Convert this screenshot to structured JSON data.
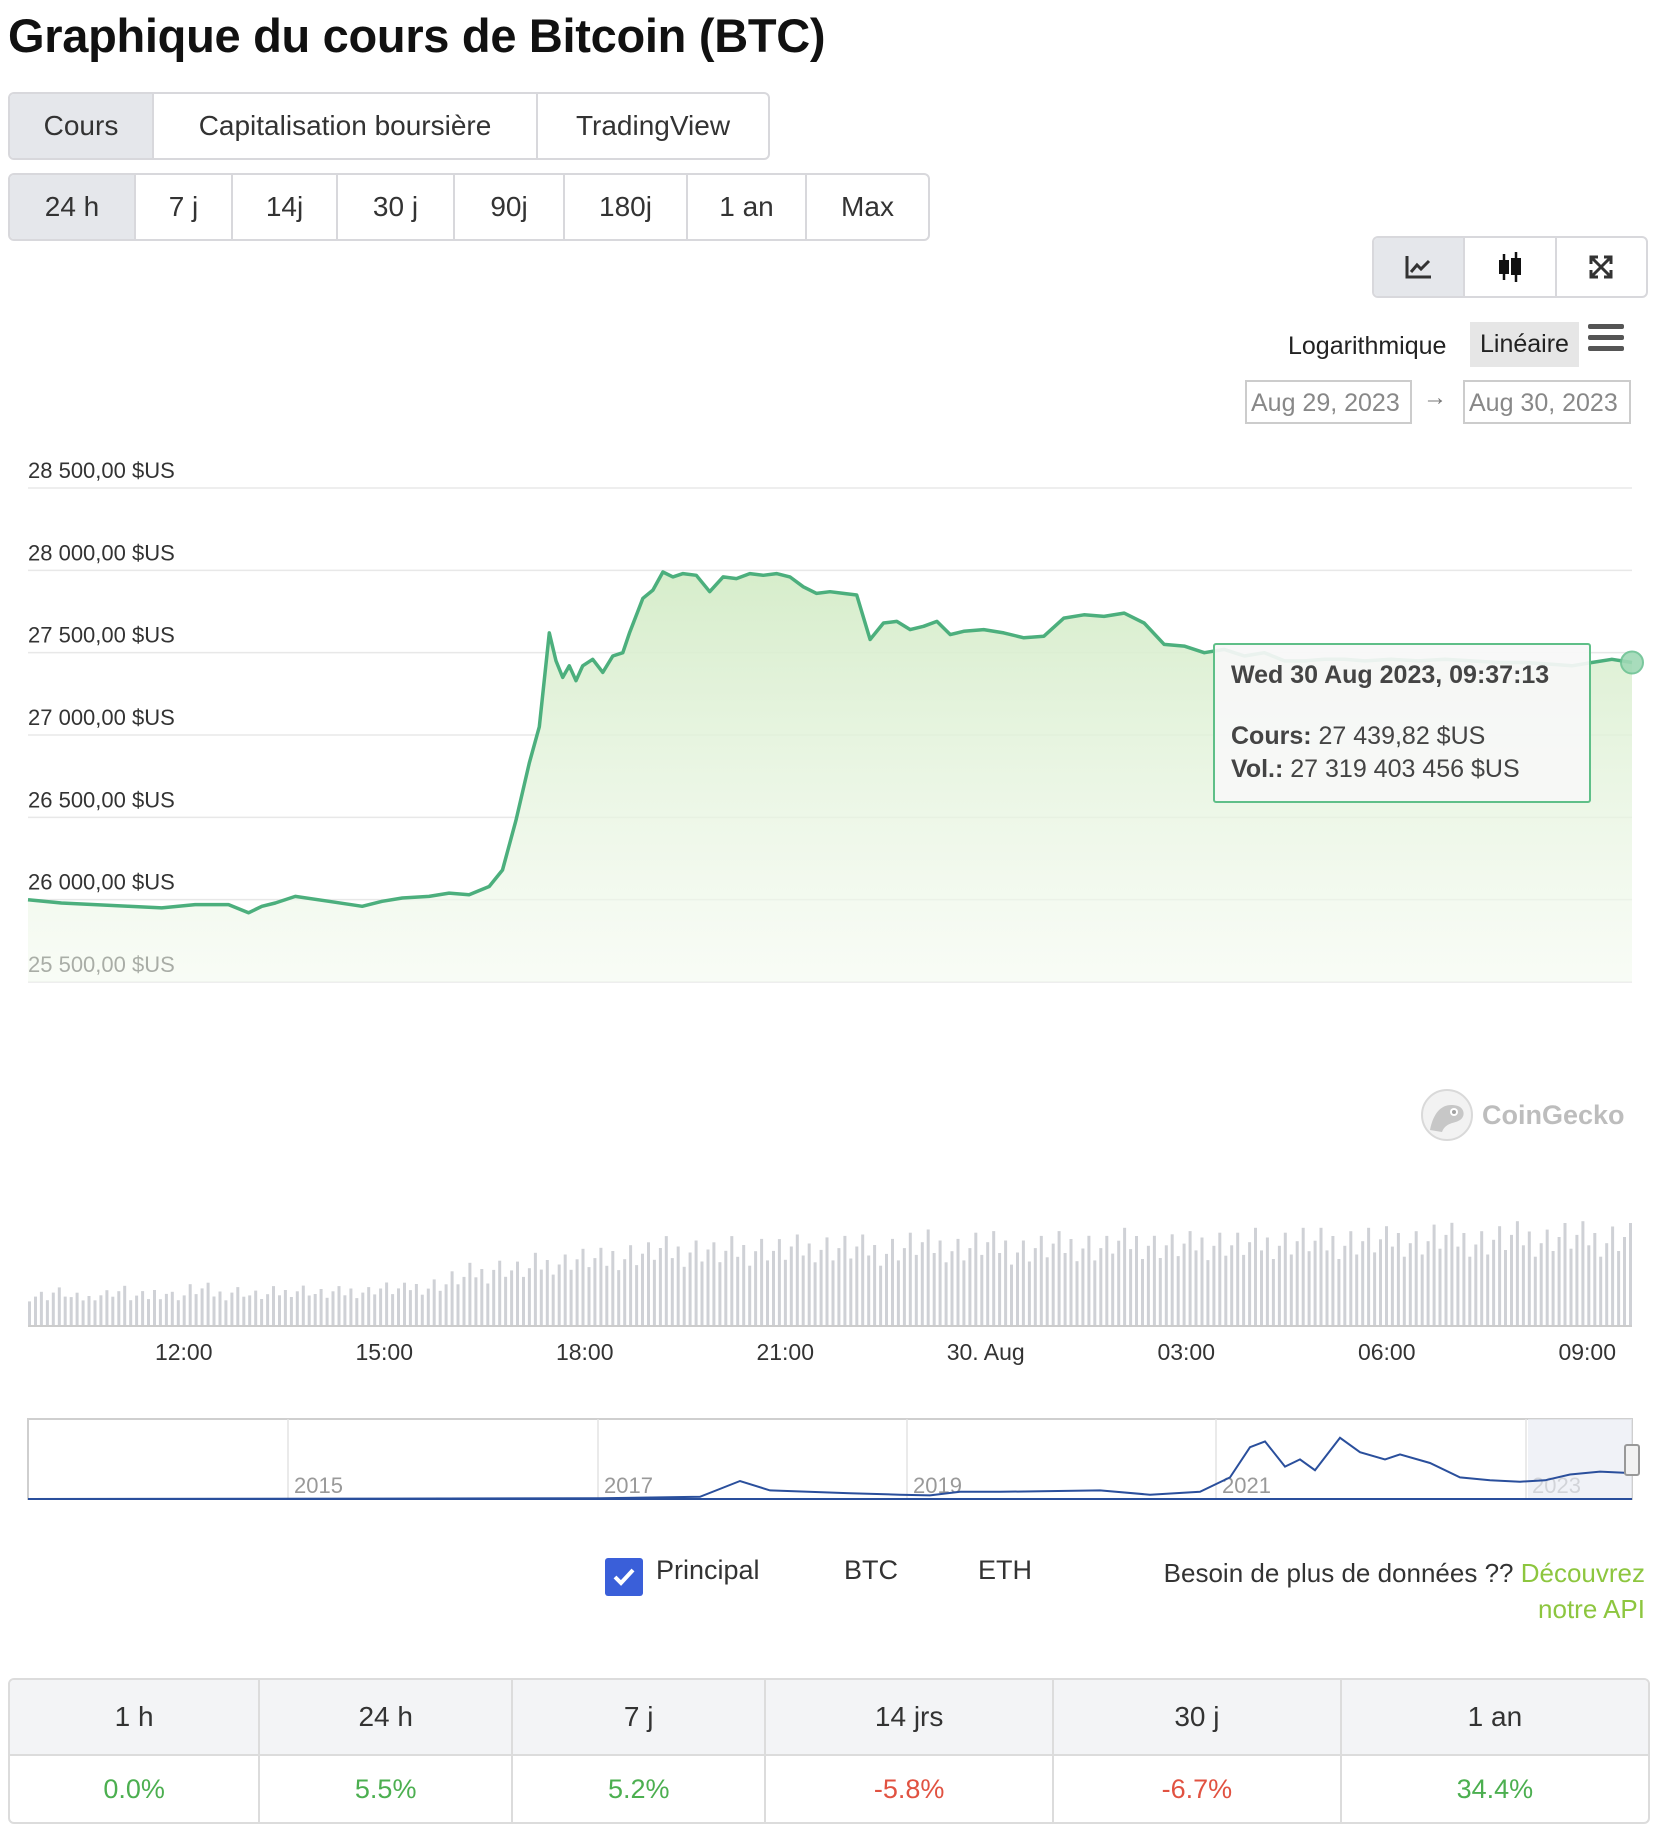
{
  "page": {
    "title": "Graphique du cours de Bitcoin (BTC)"
  },
  "tabs": [
    {
      "label": "Cours",
      "active": true
    },
    {
      "label": "Capitalisation boursière",
      "active": false
    },
    {
      "label": "TradingView",
      "active": false
    }
  ],
  "ranges": [
    {
      "label": "24 h",
      "active": true
    },
    {
      "label": "7 j",
      "active": false
    },
    {
      "label": "14j",
      "active": false
    },
    {
      "label": "30 j",
      "active": false
    },
    {
      "label": "90j",
      "active": false
    },
    {
      "label": "180j",
      "active": false
    },
    {
      "label": "1 an",
      "active": false
    },
    {
      "label": "Max",
      "active": false
    }
  ],
  "chart_tools": [
    {
      "icon": "line-chart-icon",
      "active": true
    },
    {
      "icon": "candlestick-icon",
      "active": false
    },
    {
      "icon": "fullscreen-icon",
      "active": false
    }
  ],
  "scale": {
    "log_label": "Logarithmique",
    "linear_label": "Linéaire",
    "selected": "Linéaire"
  },
  "date_range": {
    "from": "Aug 29, 2023",
    "to": "Aug 30, 2023",
    "arrow": "→"
  },
  "tooltip": {
    "date": "Wed 30 Aug 2023, 09:37:13",
    "price_label": "Cours:",
    "price_value": "27 439,82 $US",
    "volume_label": "Vol.:",
    "volume_value": "27 319 403 456 $US"
  },
  "watermark": "CoinGecko",
  "colors": {
    "line": "#4caf7d",
    "accent_positive": "#4caf50",
    "accent_negative": "#e15241",
    "checkbox": "#3a5fd9",
    "link": "#8dc63f",
    "navigator_line": "#2a4f9c"
  },
  "chart_data": {
    "type": "area",
    "ylim": [
      25500,
      28500
    ],
    "y_ticks": [
      "28 500,00 $US",
      "28 000,00 $US",
      "27 500,00 $US",
      "27 000,00 $US",
      "26 500,00 $US",
      "26 000,00 $US",
      "25 500,00 $US"
    ],
    "y_tick_values": [
      28500,
      28000,
      27500,
      27000,
      26500,
      26000,
      25500
    ],
    "x_ticks": [
      "12:00",
      "15:00",
      "18:00",
      "21:00",
      "30. Aug",
      "03:00",
      "06:00",
      "09:00"
    ],
    "x_tick_hours": [
      2.33,
      5.33,
      8.33,
      11.33,
      14.33,
      17.33,
      20.33,
      23.33
    ],
    "x_hours_range": [
      0,
      24
    ],
    "series": [
      {
        "x": [
          0,
          0.5,
          1,
          1.5,
          2,
          2.5,
          3,
          3.3,
          3.5,
          3.7,
          4,
          4.5,
          5,
          5.3,
          5.6,
          6,
          6.3,
          6.6,
          6.9,
          7.1,
          7.3,
          7.5,
          7.65,
          7.8,
          7.9,
          8.0,
          8.1,
          8.2,
          8.3,
          8.45,
          8.6,
          8.75,
          8.9,
          9.0,
          9.2,
          9.35,
          9.5,
          9.65,
          9.8,
          10,
          10.2,
          10.4,
          10.6,
          10.8,
          11,
          11.2,
          11.4,
          11.6,
          11.8,
          12,
          12.2,
          12.4,
          12.6,
          12.8,
          13,
          13.2,
          13.4,
          13.6,
          13.8,
          14,
          14.3,
          14.6,
          14.9,
          15.2,
          15.5,
          15.8,
          16.1,
          16.4,
          16.7,
          17,
          17.3,
          17.6,
          17.9,
          18.2,
          18.5,
          18.8,
          19.1,
          19.4,
          19.7,
          20,
          20.4,
          20.8,
          21.2,
          21.6,
          22,
          22.4,
          22.8,
          23.1,
          23.4,
          23.7,
          24
        ],
        "y": [
          26000,
          25980,
          25970,
          25960,
          25950,
          25970,
          25970,
          25920,
          25960,
          25980,
          26020,
          25990,
          25960,
          25990,
          26010,
          26020,
          26040,
          26030,
          26080,
          26180,
          26480,
          26830,
          27050,
          27620,
          27450,
          27350,
          27420,
          27330,
          27420,
          27460,
          27380,
          27480,
          27500,
          27620,
          27830,
          27880,
          27990,
          27960,
          27980,
          27970,
          27870,
          27960,
          27950,
          27980,
          27970,
          27980,
          27960,
          27900,
          27860,
          27870,
          27860,
          27850,
          27580,
          27680,
          27690,
          27640,
          27660,
          27690,
          27610,
          27630,
          27640,
          27620,
          27590,
          27600,
          27710,
          27730,
          27720,
          27740,
          27680,
          27550,
          27540,
          27500,
          27520,
          27480,
          27500,
          27450,
          27450,
          27460,
          27460,
          27450,
          27460,
          27450,
          27460,
          27450,
          27440,
          27440,
          27430,
          27420,
          27440,
          27460,
          27440
        ]
      }
    ],
    "volume_series": {
      "x_hours_range": [
        0,
        24
      ],
      "values": [
        22,
        24,
        20,
        23,
        25,
        21,
        24,
        22,
        26,
        23,
        25,
        22,
        24,
        26,
        23,
        24,
        25,
        27,
        26,
        28,
        30,
        34,
        38,
        42,
        40,
        44,
        46,
        48,
        47,
        50,
        52,
        54,
        53,
        55,
        52,
        54,
        56,
        54,
        55,
        57,
        56,
        55,
        54,
        56,
        58,
        57,
        56,
        58,
        57,
        55,
        56,
        57,
        58,
        56,
        59,
        60,
        58,
        57,
        59,
        60,
        58,
        59,
        60,
        61,
        59,
        60,
        61,
        60,
        62,
        61,
        63,
        62,
        61,
        62,
        63,
        62,
        64,
        63,
        62,
        64
      ]
    }
  },
  "navigator": {
    "years": [
      "2015",
      "2017",
      "2019",
      "2021",
      "2023"
    ]
  },
  "legend": {
    "items": [
      {
        "label": "Principal",
        "checked": true
      },
      {
        "label": "BTC"
      },
      {
        "label": "ETH"
      }
    ]
  },
  "api_note": {
    "text": "Besoin de plus de données ?? ",
    "link": "Découvrez notre API"
  },
  "performance": {
    "headers": [
      "1 h",
      "24 h",
      "7 j",
      "14 jrs",
      "30 j",
      "1 an"
    ],
    "values": [
      {
        "value": "0.0%",
        "trend": "pos"
      },
      {
        "value": "5.5%",
        "trend": "pos"
      },
      {
        "value": "5.2%",
        "trend": "pos"
      },
      {
        "value": "-5.8%",
        "trend": "neg"
      },
      {
        "value": "-6.7%",
        "trend": "neg"
      },
      {
        "value": "34.4%",
        "trend": "pos"
      }
    ]
  }
}
